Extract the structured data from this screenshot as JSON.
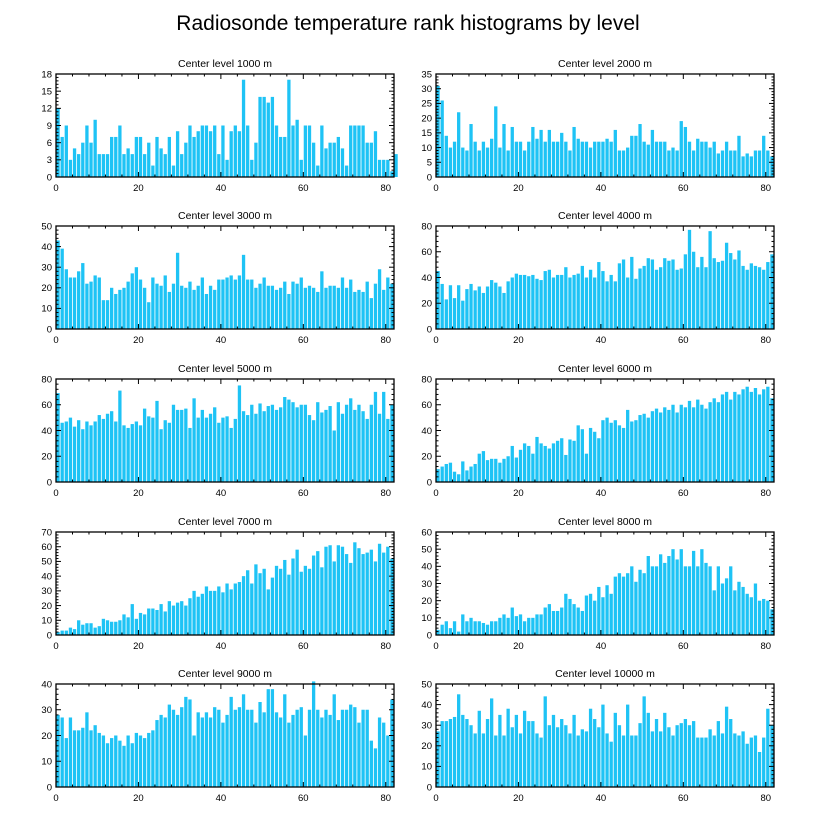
{
  "title": "Radiosonde temperature rank histograms by level",
  "colors": {
    "bar": "#1EC3F5",
    "axis": "#000000",
    "background": "#FFFFFF"
  },
  "chart_data": [
    {
      "type": "bar",
      "title": "Center level 1000 m",
      "xlim": [
        0,
        82
      ],
      "ylim": [
        0,
        18
      ],
      "xticks": [
        0,
        20,
        40,
        60,
        80
      ],
      "yticks": [
        0,
        3,
        6,
        9,
        12,
        15,
        18
      ],
      "x_start": 0,
      "values": [
        12,
        7,
        9,
        3,
        5,
        4,
        6,
        9,
        6,
        10,
        4,
        4,
        4,
        7,
        7,
        9,
        4,
        5,
        4,
        7,
        7,
        4,
        6,
        2,
        7,
        5,
        4,
        7,
        2,
        8,
        4,
        6,
        9,
        7,
        8,
        9,
        9,
        8,
        9,
        4,
        9,
        3,
        8,
        9,
        8,
        17,
        9,
        3,
        6,
        14,
        14,
        13,
        14,
        9,
        7,
        7,
        17,
        9,
        10,
        3,
        9,
        9,
        6,
        2,
        9,
        5,
        6,
        6,
        7,
        5,
        2,
        9,
        9,
        9,
        9,
        6,
        6,
        8,
        3,
        3,
        3,
        1,
        4
      ]
    },
    {
      "type": "bar",
      "title": "Center level 2000 m",
      "xlim": [
        0,
        82
      ],
      "ylim": [
        0,
        35
      ],
      "xticks": [
        0,
        20,
        40,
        60,
        80
      ],
      "yticks": [
        0,
        5,
        10,
        15,
        20,
        25,
        30,
        35
      ],
      "x_start": 0,
      "values": [
        31,
        26,
        14,
        10,
        12,
        22,
        10,
        9,
        18,
        12,
        9,
        12,
        10,
        13,
        24,
        10,
        18,
        9,
        17,
        12,
        12,
        9,
        12,
        17,
        13,
        16,
        12,
        16,
        12,
        12,
        15,
        12,
        9,
        17,
        13,
        12,
        12,
        10,
        12,
        12,
        12,
        13,
        12,
        16,
        9,
        9,
        10,
        14,
        14,
        18,
        12,
        11,
        16,
        12,
        12,
        12,
        9,
        10,
        9,
        19,
        17,
        12,
        9,
        13,
        12,
        12,
        10,
        12,
        8,
        9,
        12,
        9,
        9,
        14,
        7,
        8,
        7,
        9,
        9,
        14,
        9,
        7
      ]
    },
    {
      "type": "bar",
      "title": "Center level 3000 m",
      "xlim": [
        0,
        82
      ],
      "ylim": [
        0,
        50
      ],
      "xticks": [
        0,
        20,
        40,
        60,
        80
      ],
      "yticks": [
        0,
        10,
        20,
        30,
        40,
        50
      ],
      "x_start": 0,
      "values": [
        43,
        39,
        29,
        25,
        25,
        28,
        32,
        22,
        23,
        26,
        25,
        14,
        14,
        20,
        17,
        19,
        20,
        23,
        27,
        30,
        24,
        20,
        13,
        25,
        22,
        21,
        26,
        18,
        22,
        37,
        21,
        20,
        23,
        19,
        21,
        25,
        17,
        21,
        19,
        24,
        24,
        25,
        26,
        24,
        26,
        36,
        24,
        24,
        20,
        22,
        25,
        21,
        21,
        19,
        20,
        23,
        17,
        23,
        22,
        25,
        20,
        21,
        20,
        18,
        28,
        20,
        21,
        21,
        20,
        25,
        20,
        24,
        18,
        19,
        18,
        23,
        15,
        22,
        29,
        19,
        25,
        22
      ]
    },
    {
      "type": "bar",
      "title": "Center level 4000 m",
      "xlim": [
        0,
        82
      ],
      "ylim": [
        0,
        80
      ],
      "xticks": [
        0,
        20,
        40,
        60,
        80
      ],
      "yticks": [
        0,
        20,
        40,
        60,
        80
      ],
      "x_start": 0,
      "values": [
        45,
        35,
        23,
        34,
        24,
        34,
        22,
        31,
        35,
        30,
        33,
        28,
        33,
        38,
        36,
        33,
        28,
        37,
        40,
        43,
        42,
        42,
        41,
        42,
        39,
        38,
        45,
        46,
        40,
        42,
        42,
        48,
        40,
        42,
        43,
        49,
        40,
        46,
        40,
        52,
        45,
        37,
        42,
        37,
        51,
        54,
        40,
        56,
        39,
        47,
        49,
        55,
        54,
        46,
        48,
        55,
        53,
        54,
        46,
        47,
        58,
        77,
        60,
        48,
        56,
        48,
        76,
        55,
        52,
        53,
        67,
        59,
        54,
        61,
        49,
        46,
        51,
        49,
        48,
        46,
        52,
        58
      ]
    },
    {
      "type": "bar",
      "title": "Center level 5000 m",
      "xlim": [
        0,
        82
      ],
      "ylim": [
        0,
        80
      ],
      "xticks": [
        0,
        20,
        40,
        60,
        80
      ],
      "yticks": [
        0,
        20,
        40,
        60,
        80
      ],
      "x_start": 0,
      "values": [
        69,
        46,
        47,
        50,
        43,
        48,
        41,
        47,
        44,
        47,
        52,
        49,
        53,
        55,
        47,
        71,
        44,
        42,
        45,
        47,
        44,
        57,
        51,
        50,
        63,
        41,
        48,
        46,
        60,
        56,
        56,
        57,
        42,
        65,
        50,
        56,
        50,
        53,
        58,
        46,
        50,
        51,
        42,
        49,
        75,
        55,
        52,
        60,
        53,
        61,
        55,
        59,
        60,
        56,
        58,
        66,
        64,
        62,
        58,
        60,
        60,
        52,
        48,
        62,
        54,
        56,
        59,
        40,
        62,
        53,
        60,
        65,
        56,
        60,
        55,
        49,
        60,
        70,
        53,
        70,
        49,
        60
      ]
    },
    {
      "type": "bar",
      "title": "Center level 6000 m",
      "xlim": [
        0,
        82
      ],
      "ylim": [
        0,
        80
      ],
      "xticks": [
        0,
        20,
        40,
        60,
        80
      ],
      "yticks": [
        0,
        20,
        40,
        60,
        80
      ],
      "x_start": 0,
      "values": [
        10,
        12,
        14,
        15,
        8,
        6,
        16,
        9,
        12,
        14,
        22,
        24,
        17,
        18,
        18,
        15,
        18,
        20,
        28,
        19,
        25,
        30,
        28,
        22,
        35,
        30,
        28,
        26,
        30,
        32,
        34,
        21,
        33,
        32,
        44,
        41,
        22,
        42,
        39,
        34,
        48,
        50,
        46,
        48,
        44,
        42,
        56,
        47,
        48,
        52,
        53,
        50,
        55,
        57,
        54,
        58,
        56,
        60,
        54,
        60,
        58,
        63,
        58,
        64,
        60,
        57,
        62,
        65,
        62,
        68,
        70,
        64,
        70,
        68,
        72,
        74,
        70,
        73,
        68,
        72,
        74,
        65
      ]
    },
    {
      "type": "bar",
      "title": "Center level 7000 m",
      "xlim": [
        0,
        82
      ],
      "ylim": [
        0,
        70
      ],
      "xticks": [
        0,
        20,
        40,
        60,
        80
      ],
      "yticks": [
        0,
        10,
        20,
        30,
        40,
        50,
        60,
        70
      ],
      "x_start": 0,
      "values": [
        2,
        3,
        3,
        5,
        4,
        10,
        7,
        8,
        8,
        5,
        6,
        11,
        10,
        9,
        9,
        10,
        14,
        12,
        21,
        11,
        15,
        14,
        18,
        18,
        17,
        21,
        16,
        23,
        20,
        22,
        23,
        20,
        25,
        30,
        26,
        28,
        33,
        30,
        30,
        33,
        29,
        35,
        31,
        35,
        36,
        40,
        44,
        35,
        48,
        42,
        45,
        31,
        39,
        47,
        45,
        51,
        41,
        52,
        58,
        43,
        47,
        45,
        54,
        57,
        46,
        60,
        61,
        50,
        61,
        60,
        55,
        49,
        63,
        59,
        55,
        56,
        58,
        50,
        62,
        56,
        60,
        52
      ]
    },
    {
      "type": "bar",
      "title": "Center level 8000 m",
      "xlim": [
        0,
        82
      ],
      "ylim": [
        0,
        60
      ],
      "xticks": [
        0,
        20,
        40,
        60,
        80
      ],
      "yticks": [
        0,
        10,
        20,
        30,
        40,
        50,
        60
      ],
      "x_start": 0,
      "values": [
        3,
        6,
        8,
        4,
        8,
        2,
        12,
        8,
        10,
        8,
        8,
        7,
        6,
        8,
        8,
        10,
        12,
        10,
        16,
        11,
        12,
        8,
        10,
        10,
        12,
        12,
        16,
        18,
        14,
        14,
        16,
        24,
        21,
        18,
        16,
        14,
        23,
        24,
        20,
        28,
        22,
        29,
        24,
        34,
        36,
        34,
        36,
        40,
        31,
        38,
        36,
        46,
        40,
        40,
        47,
        42,
        46,
        50,
        44,
        50,
        40,
        40,
        49,
        40,
        50,
        42,
        40,
        26,
        40,
        30,
        33,
        40,
        26,
        31,
        28,
        24,
        22,
        30,
        20,
        21,
        20,
        15
      ]
    },
    {
      "type": "bar",
      "title": "Center level 9000 m",
      "xlim": [
        0,
        82
      ],
      "ylim": [
        0,
        40
      ],
      "xticks": [
        0,
        20,
        40,
        60,
        80
      ],
      "yticks": [
        0,
        10,
        20,
        30,
        40
      ],
      "x_start": 0,
      "values": [
        28,
        27,
        19,
        27,
        22,
        22,
        23,
        29,
        22,
        24,
        21,
        20,
        17,
        19,
        20,
        18,
        16,
        20,
        17,
        21,
        20,
        19,
        21,
        22,
        26,
        28,
        27,
        32,
        30,
        28,
        31,
        35,
        34,
        20,
        29,
        27,
        29,
        27,
        31,
        30,
        25,
        28,
        35,
        30,
        31,
        36,
        30,
        30,
        25,
        33,
        29,
        38,
        38,
        29,
        27,
        36,
        25,
        28,
        30,
        31,
        20,
        30,
        41,
        30,
        27,
        30,
        28,
        36,
        26,
        30,
        30,
        32,
        31,
        25,
        30,
        30,
        18,
        15,
        27,
        25,
        20,
        34
      ]
    },
    {
      "type": "bar",
      "title": "Center level 10000 m",
      "xlim": [
        0,
        82
      ],
      "ylim": [
        0,
        50
      ],
      "xticks": [
        0,
        20,
        40,
        60,
        80
      ],
      "yticks": [
        0,
        10,
        20,
        30,
        40,
        50
      ],
      "x_start": 0,
      "values": [
        27,
        32,
        32,
        33,
        34,
        45,
        35,
        33,
        30,
        26,
        37,
        26,
        33,
        43,
        25,
        35,
        25,
        38,
        29,
        35,
        26,
        37,
        32,
        32,
        26,
        24,
        44,
        30,
        35,
        29,
        33,
        30,
        26,
        35,
        25,
        28,
        27,
        38,
        33,
        29,
        40,
        26,
        22,
        36,
        30,
        25,
        40,
        25,
        25,
        31,
        44,
        36,
        27,
        33,
        27,
        36,
        29,
        25,
        30,
        31,
        33,
        30,
        32,
        24,
        24,
        24,
        28,
        25,
        32,
        26,
        39,
        33,
        26,
        25,
        27,
        21,
        24,
        25,
        17,
        24,
        38,
        30
      ]
    }
  ]
}
